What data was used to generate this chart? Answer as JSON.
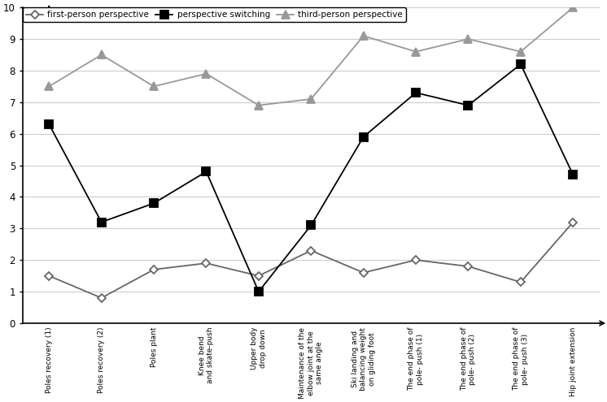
{
  "categories": [
    "Poles recovery (1)",
    "Poles recovery (2)",
    "Poles plant",
    "Knee bend\nand skate-push",
    "Upper body\ndrop down",
    "Maintenance of the\nelbow joint at the\nsame angle",
    "Ski landing and\nbalancing weight\non gliding foot",
    "The end phase of\npole- push (1)",
    "The end phase of\npole- push (2)",
    "The end phase of\npole- push (3)",
    "Hip joint extension"
  ],
  "first_person": [
    1.5,
    0.8,
    1.7,
    1.9,
    1.5,
    2.3,
    1.6,
    2.0,
    1.8,
    1.3,
    3.2
  ],
  "perspective_switching": [
    6.3,
    3.2,
    3.8,
    4.8,
    1.0,
    3.1,
    5.9,
    7.3,
    6.9,
    8.2,
    4.7
  ],
  "third_person": [
    7.5,
    8.5,
    7.5,
    7.9,
    6.9,
    7.1,
    9.1,
    8.6,
    9.0,
    8.6,
    10.0
  ],
  "ylim": [
    0,
    10
  ],
  "yticks": [
    0,
    1,
    2,
    3,
    4,
    5,
    6,
    7,
    8,
    9,
    10
  ],
  "legend_labels": [
    "first-person perspective",
    "perspective switching",
    "third-person perspective"
  ],
  "line_colors": [
    "#666666",
    "#000000",
    "#999999"
  ],
  "marker_styles": [
    "D",
    "s",
    "^"
  ],
  "marker_sizes": [
    5,
    7,
    7
  ],
  "background_color": "#ffffff",
  "grid_color": "#cccccc"
}
